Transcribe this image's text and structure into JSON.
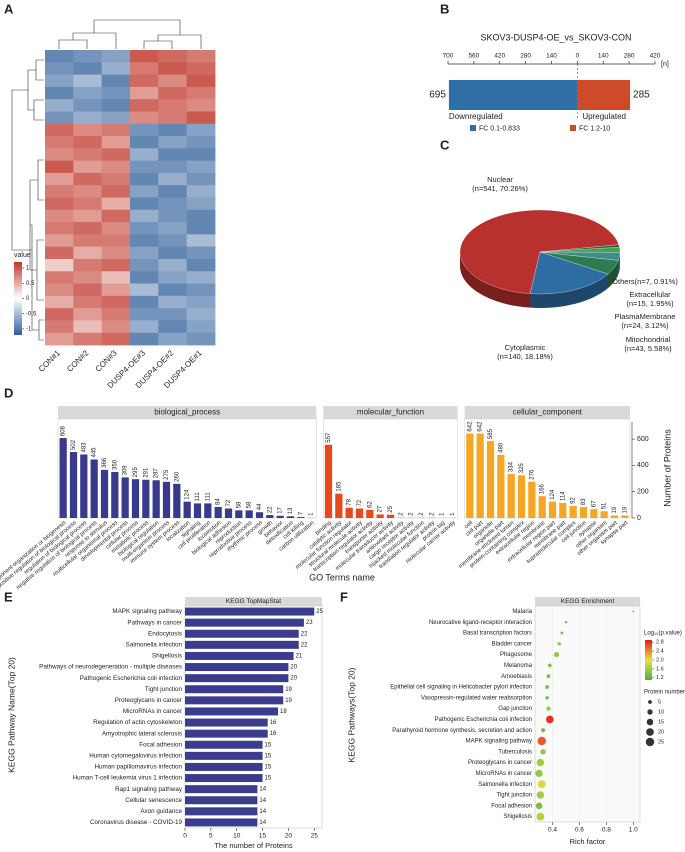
{
  "chart_data": [
    {
      "type": "heatmap",
      "panel": "A",
      "legend_title": "value",
      "columns": [
        "CON#1",
        "CON#2",
        "CON#3",
        "DUSP4-OE#3",
        "DUSP4-OE#2",
        "DUSP4-OE#1"
      ],
      "values": [
        [
          -0.9,
          -0.8,
          -0.7,
          1,
          0.9,
          0.8
        ],
        [
          -0.8,
          -0.9,
          -0.6,
          0.8,
          1,
          0.9
        ],
        [
          -0.7,
          -0.5,
          -0.9,
          0.9,
          0.7,
          1
        ],
        [
          -0.9,
          -0.7,
          -0.8,
          0.6,
          0.9,
          0.8
        ],
        [
          -0.6,
          -0.8,
          -0.9,
          0.9,
          0.8,
          0.7
        ],
        [
          -0.8,
          -0.6,
          -0.7,
          0.7,
          0.8,
          1
        ],
        [
          0.9,
          0.7,
          0.8,
          -0.8,
          -0.9,
          -0.7
        ],
        [
          0.8,
          0.9,
          0.6,
          -0.9,
          -0.7,
          -0.8
        ],
        [
          0.7,
          0.8,
          0.9,
          -0.6,
          -0.9,
          -0.9
        ],
        [
          1,
          0.6,
          0.7,
          -0.8,
          -0.8,
          -0.7
        ],
        [
          0.6,
          0.9,
          0.8,
          -0.9,
          -0.6,
          -0.8
        ],
        [
          0.8,
          0.7,
          0.9,
          -0.7,
          -0.9,
          -0.6
        ],
        [
          0.9,
          0.8,
          0.5,
          -0.9,
          -0.8,
          -0.7
        ],
        [
          0.7,
          0.6,
          0.9,
          -0.6,
          -0.8,
          -0.9
        ],
        [
          0.8,
          0.9,
          0.7,
          -0.8,
          -0.7,
          -0.9
        ],
        [
          0.6,
          0.8,
          0.8,
          -0.9,
          -0.8,
          -0.5
        ],
        [
          0.9,
          0.5,
          0.7,
          -0.7,
          -0.9,
          -0.8
        ],
        [
          0.3,
          0.8,
          0.9,
          -0.8,
          -0.6,
          -0.9
        ],
        [
          0.8,
          0.7,
          0.4,
          -0.9,
          -0.7,
          -0.6
        ],
        [
          0.7,
          0.9,
          0.6,
          -0.5,
          -0.9,
          -0.8
        ],
        [
          0.5,
          0.8,
          0.9,
          -0.9,
          -0.6,
          -0.7
        ],
        [
          0.9,
          0.6,
          0.8,
          -0.8,
          -0.8,
          -0.6
        ],
        [
          0.8,
          0.4,
          0.7,
          -0.6,
          -0.9,
          -0.7
        ],
        [
          0.6,
          0.8,
          0.9,
          -0.9,
          -0.7,
          -0.8
        ]
      ],
      "clim": [
        -1.2,
        1.2
      ],
      "cticks": [
        1,
        0.5,
        0,
        -0.5,
        -1
      ],
      "colors": [
        "#2f5f9a",
        "#ffffff",
        "#c0392b"
      ]
    },
    {
      "type": "diverging_bar",
      "panel": "B",
      "title": "SKOV3-DUSP4-OE_vs_SKOV3-CON",
      "categories": [
        "Downregulated",
        "Upregulated"
      ],
      "values": [
        -695,
        285
      ],
      "value_labels": [
        "695",
        "285"
      ],
      "xlim": [
        -700,
        420
      ],
      "xticks": [
        {
          "value": -700,
          "label": "700"
        },
        {
          "value": -560,
          "label": "560"
        },
        {
          "value": -420,
          "label": "420"
        },
        {
          "value": -280,
          "label": "280"
        },
        {
          "value": -140,
          "label": "140"
        },
        0,
        140,
        280,
        420
      ],
      "axis_label": "[n]",
      "legend": [
        {
          "name": "FC 0.1-0.833",
          "color": "#2e6fa6"
        },
        {
          "name": "FC 1.2-10",
          "color": "#cf4a2a"
        }
      ]
    },
    {
      "type": "pie",
      "panel": "C",
      "labels": [
        [
          "Nuclear",
          "(n=541, 70.26%)"
        ],
        [
          "Cytoplasmic",
          "(n=140, 18.18%)"
        ],
        [
          "Mitochondrial",
          "(n=43, 5.58%)"
        ],
        [
          "PlasmaMembrane",
          "(n=24, 3.12%)"
        ],
        [
          "Extracellular",
          "(n=15, 1.95%)"
        ],
        [
          "Others(n=7, 0.91%)"
        ]
      ],
      "values": [
        70.26,
        18.18,
        5.58,
        3.12,
        1.95,
        0.91
      ],
      "colors": [
        "#b8312f",
        "#2e6da4",
        "#2f7a4f",
        "#3a8f8a",
        "#4aa04a",
        "#2a5d3a"
      ]
    },
    {
      "type": "faceted_bar",
      "panel": "D",
      "xlabel": "GO Terms name",
      "ylabel": "Number of Proteins",
      "ylim": [
        0,
        730
      ],
      "yticks": [
        0,
        200,
        400,
        600
      ],
      "facets": [
        {
          "name": "biological_process",
          "color": "#3a3a8c",
          "categories": [
            "cellular component organization or biogenesis",
            "positive regulation of biological process",
            "regulation of biological process",
            "negative regulation of biological process",
            "response to stimulus",
            "multicellular organismal process",
            "developmental process",
            "cellular process",
            "metabolic process",
            "biological regulation",
            "multi-organism process",
            "immune system process",
            "localization",
            "signaling",
            "cell proliferation",
            "locomotion",
            "biological adhesion",
            "reproduction",
            "reproductive process",
            "rhythmic process",
            "growth",
            "behavior",
            "detoxification",
            "cell killing",
            "carbon utilization"
          ],
          "values": [
            608,
            502,
            483,
            445,
            366,
            350,
            309,
            295,
            291,
            287,
            275,
            260,
            124,
            111,
            111,
            84,
            72,
            58,
            58,
            44,
            22,
            17,
            13,
            7,
            1
          ]
        },
        {
          "name": "molecular_function",
          "color": "#e8491c",
          "categories": [
            "binding",
            "catalytic activity",
            "molecular function regulator",
            "structural molecule activity",
            "transcription regulator activity",
            "transporter activity",
            "molecular transducer activity",
            "antioxidant activity",
            "cargo receptor activity",
            "hijacked molecular function",
            "translation regulator activity",
            "protein tag",
            "molecular carrier activity"
          ],
          "values": [
            557,
            185,
            78,
            72,
            62,
            27,
            25,
            2,
            2,
            2,
            2,
            1,
            1
          ]
        },
        {
          "name": "cellular_component",
          "color": "#f5a623",
          "categories": [
            "cell",
            "cell part",
            "organelle",
            "organelle part",
            "membrane-enclosed lumen",
            "protein-containing complex",
            "extracellular region",
            "membrane",
            "extracellular region part",
            "membrane part",
            "supramolecular complex",
            "cell junction",
            "synapse",
            "other organism",
            "other organism part",
            "synapse part"
          ],
          "values": [
            642,
            642,
            585,
            480,
            334,
            325,
            276,
            166,
            124,
            114,
            92,
            83,
            67,
            51,
            19,
            19
          ]
        }
      ]
    },
    {
      "type": "hbar",
      "panel": "E",
      "title": "KEGG TopMapStat",
      "xlabel": "The number of Proteins",
      "ylabel": "KEGG Pathway Name(Top 20)",
      "color": "#3c3c8f",
      "xlim": [
        0,
        26.5
      ],
      "xticks": [
        0,
        5,
        10,
        15,
        20,
        25
      ],
      "categories": [
        "MAPK signaling pathway",
        "Pathways in cancer",
        "Endocytosis",
        "Salmonella infection",
        "Shigellosis",
        "Pathways of neurodegeneration - multiple diseases",
        "Pathogenic Escherichia coli infection",
        "Tight junction",
        "Proteoglycans in cancer",
        "MicroRNAs in cancer",
        "Regulation of actin cytoskeleton",
        "Amyotrophic lateral sclerosis",
        "Focal adhesion",
        "Human cytomegalovirus infection",
        "Human papillomavirus infection",
        "Human T-cell leukemia virus 1 infection",
        "Rap1 signaling pathway",
        "Cellular senescence",
        "Axon guidance",
        "Coronavirus disease - COVID-19"
      ],
      "values": [
        25,
        23,
        22,
        22,
        21,
        20,
        20,
        19,
        19,
        18,
        16,
        16,
        15,
        15,
        15,
        15,
        14,
        14,
        14,
        14
      ]
    },
    {
      "type": "dot",
      "panel": "F",
      "title": "KEGG Enrichment",
      "xlabel": "Rich factor",
      "ylabel": "KEGG Pathways(Top 20)",
      "xlim": [
        0.27,
        1.05
      ],
      "xticks": [
        0.4,
        0.6,
        0.8,
        {
          "value": 1,
          "label": "1.0"
        }
      ],
      "categories": [
        "Malaria",
        "Neurocative ligand-receptor interaction",
        "Basal transcription factors",
        "Bladder cancer",
        "Phagosome",
        "Melanoma",
        "Amoebiasis",
        "Epithelial cell signaling in Helicobacter pylori infection",
        "Vasopressin-regulated water reabsorption",
        "Gap junction",
        "Pathogenic Escherichia coli infection",
        "Parathyroid hormone synthesis, secretion and action",
        "MAPK signaling pathway",
        "Tuberculosis",
        "Proteoglycans in cancer",
        "MicroRNAs in cancer",
        "Salmonella infection",
        "Tight junction",
        "Focal adhesion",
        "Shigellosis"
      ],
      "rich_factor": [
        1.0,
        0.5,
        0.47,
        0.45,
        0.43,
        0.38,
        0.37,
        0.36,
        0.36,
        0.37,
        0.38,
        0.33,
        0.32,
        0.33,
        0.31,
        0.3,
        0.32,
        0.31,
        0.3,
        0.31
      ],
      "protein_number": [
        1,
        2,
        3,
        4,
        9,
        5,
        5,
        5,
        4,
        6,
        20,
        6,
        25,
        10,
        19,
        18,
        22,
        19,
        15,
        21
      ],
      "log10_p": [
        1.2,
        1.3,
        1.4,
        1.5,
        1.5,
        1.4,
        1.4,
        1.35,
        1.3,
        1.5,
        2.8,
        1.3,
        2.6,
        1.5,
        1.6,
        1.5,
        1.9,
        1.6,
        1.35,
        1.7
      ],
      "color_title": "Log₁₀(p.value)",
      "clim": [
        1.1,
        2.9
      ],
      "colors": [
        "#4daf4a",
        "#e8e23a",
        "#e41a1c"
      ],
      "cticks": [
        2.8,
        2.4,
        {
          "value": 2,
          "label": "2.0"
        },
        1.6,
        1.2
      ],
      "size_title": "Protein number",
      "size_ticks": [
        5,
        10,
        15,
        20,
        25
      ]
    }
  ]
}
